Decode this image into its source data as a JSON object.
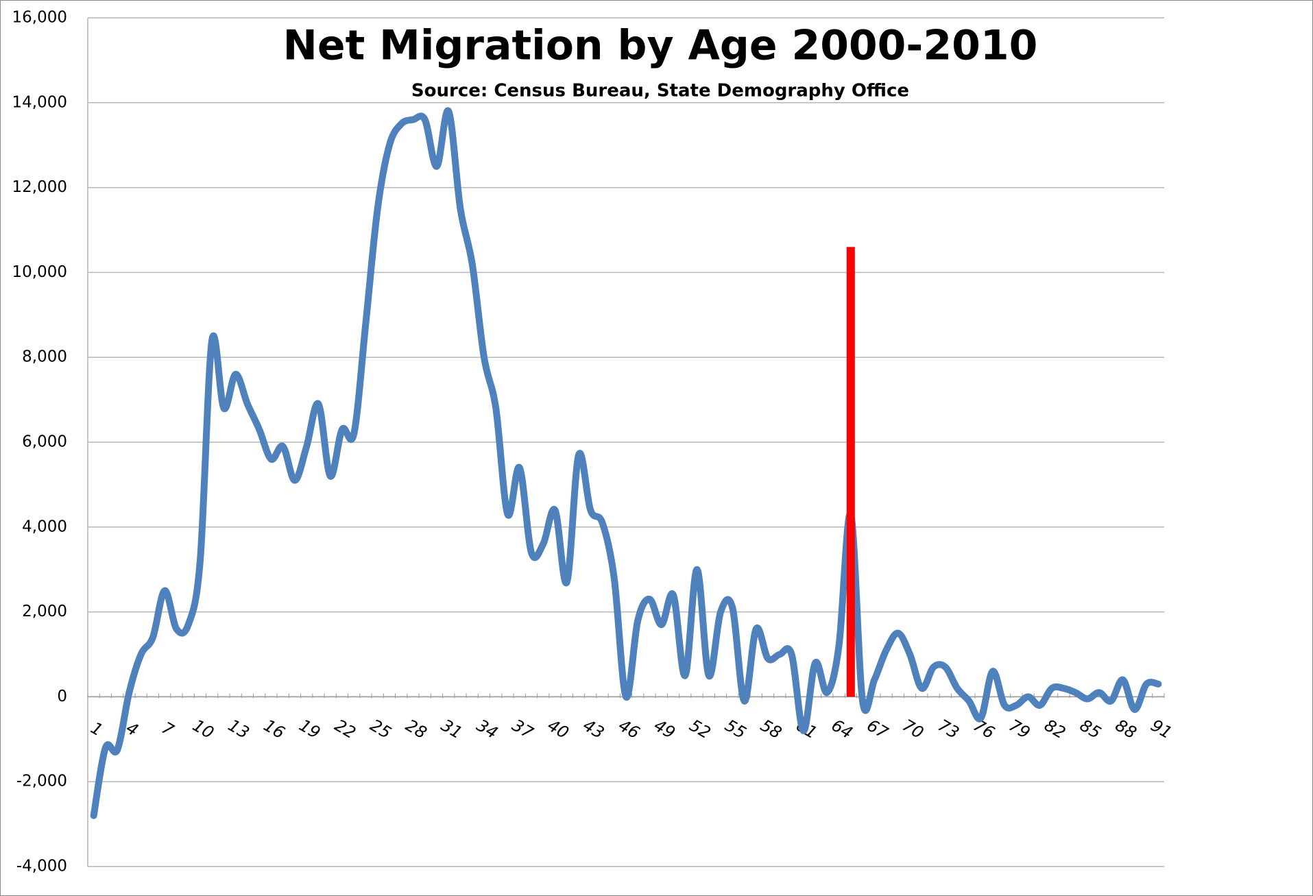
{
  "chart_data": {
    "type": "line",
    "title": "Net Migration by Age 2000-2010",
    "subtitle": "Source: Census Bureau, State Demography Office",
    "categories": [
      1,
      null,
      null,
      4,
      null,
      null,
      7,
      null,
      null,
      10,
      null,
      null,
      13,
      null,
      null,
      16,
      null,
      null,
      19,
      null,
      null,
      22,
      null,
      null,
      25,
      null,
      null,
      28,
      null,
      null,
      31,
      null,
      null,
      34,
      null,
      null,
      37,
      null,
      null,
      40,
      null,
      null,
      43,
      null,
      null,
      46,
      null,
      null,
      49,
      null,
      null,
      52,
      null,
      null,
      55,
      null,
      null,
      58,
      null,
      null,
      61,
      null,
      null,
      64,
      null,
      null,
      67,
      null,
      null,
      70,
      null,
      null,
      73,
      null,
      null,
      76,
      null,
      null,
      79,
      null,
      null,
      82,
      null,
      null,
      85,
      null,
      null,
      88,
      null,
      null,
      91
    ],
    "values": [
      -2800,
      -1200,
      -1250,
      100,
      1000,
      1400,
      2500,
      1600,
      1700,
      3200,
      8400,
      6800,
      7600,
      6900,
      6300,
      5600,
      5900,
      5100,
      5900,
      6900,
      5200,
      6300,
      6200,
      8800,
      11500,
      13000,
      13500,
      13600,
      13600,
      12500,
      13800,
      11500,
      10200,
      8000,
      6800,
      4300,
      5400,
      3400,
      3600,
      4400,
      2700,
      5700,
      4400,
      4100,
      2800,
      0,
      1800,
      2300,
      1700,
      2400,
      500,
      3000,
      500,
      2000,
      2100,
      -100,
      1600,
      900,
      1000,
      1000,
      -800,
      800,
      100,
      1200,
      4300,
      -100,
      400,
      1100,
      1500,
      1000,
      200,
      700,
      700,
      200,
      -100,
      -500,
      600,
      -200,
      -200,
      0,
      -200,
      200,
      200,
      100,
      -50,
      100,
      -100,
      400,
      -300,
      300,
      300
    ],
    "color": "#4f81bd",
    "reference_line": {
      "x": 65,
      "ymin": 0,
      "ymax": 10600,
      "color": "#ff0000"
    },
    "ylim": [
      -4000,
      16000
    ],
    "yticks": [
      {
        "value": -4000,
        "label": "-4,000"
      },
      {
        "value": -2000,
        "label": "-2,000"
      },
      0,
      {
        "value": 2000,
        "label": "2,000"
      },
      {
        "value": 4000,
        "label": "4,000"
      },
      {
        "value": 6000,
        "label": "6,000"
      },
      {
        "value": 8000,
        "label": "8,000"
      },
      {
        "value": 10000,
        "label": "10,000"
      },
      {
        "value": 12000,
        "label": "12,000"
      },
      {
        "value": 14000,
        "label": "14,000"
      },
      {
        "value": 16000,
        "label": "16,000"
      }
    ],
    "grid": true
  }
}
